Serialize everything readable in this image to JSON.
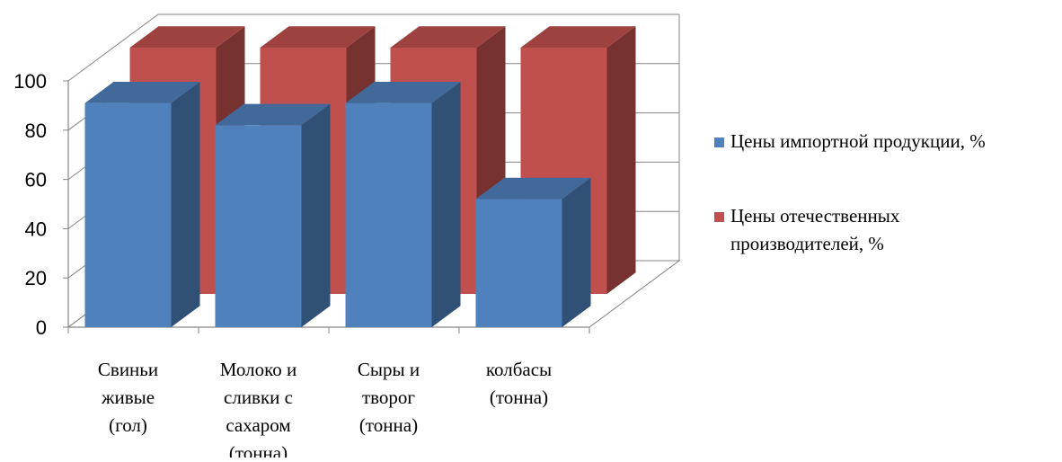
{
  "chart_data": {
    "type": "bar",
    "title": "",
    "xlabel": "",
    "ylabel": "",
    "ylim": [
      0,
      100
    ],
    "yticks": [
      0,
      20,
      40,
      60,
      80,
      100
    ],
    "grid": true,
    "legend_position": "right",
    "categories": [
      [
        "Свиньи",
        "живые",
        "(гол)"
      ],
      [
        "Молоко и",
        "сливки с",
        "сахаром",
        "(тонна)"
      ],
      [
        "Сыры и",
        "творог",
        "(тонна)"
      ],
      [
        "колбасы",
        "(тонна)"
      ]
    ],
    "series": [
      {
        "name": [
          "Цены импортной продукции, %"
        ],
        "values": [
          91,
          82,
          91,
          52
        ],
        "color": "#4F81BD"
      },
      {
        "name": [
          "Цены отечественных",
          "производителей, %"
        ],
        "values": [
          100,
          100,
          100,
          100
        ],
        "color": "#C0504D"
      }
    ]
  }
}
